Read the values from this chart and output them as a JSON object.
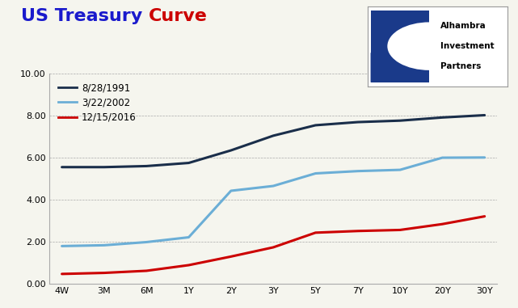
{
  "title_part1": "US Treasury ",
  "title_part2": "Curve",
  "title_color1": "#1a1acc",
  "title_color2": "#cc0000",
  "title_fontsize": 16,
  "x_labels": [
    "4W",
    "3M",
    "6M",
    "1Y",
    "2Y",
    "3Y",
    "5Y",
    "7Y",
    "10Y",
    "20Y",
    "30Y"
  ],
  "x_positions": [
    0,
    1,
    2,
    3,
    4,
    5,
    6,
    7,
    8,
    9,
    10
  ],
  "series": [
    {
      "label": "8/28/1991",
      "color": "#1a2e4a",
      "linewidth": 2.2,
      "values": [
        5.55,
        5.55,
        5.6,
        5.75,
        6.35,
        7.05,
        7.55,
        7.7,
        7.77,
        7.92,
        8.03
      ]
    },
    {
      "label": "3/22/2002",
      "color": "#6baed6",
      "linewidth": 2.2,
      "values": [
        1.78,
        1.82,
        1.97,
        2.2,
        4.42,
        4.65,
        5.25,
        5.36,
        5.42,
        6.0,
        6.01
      ]
    },
    {
      "label": "12/15/2016",
      "color": "#cc0000",
      "linewidth": 2.2,
      "values": [
        0.45,
        0.5,
        0.6,
        0.87,
        1.28,
        1.72,
        2.42,
        2.5,
        2.55,
        2.83,
        3.2
      ]
    }
  ],
  "ylim": [
    0.0,
    10.0
  ],
  "yticks": [
    0.0,
    2.0,
    4.0,
    6.0,
    8.0,
    10.0
  ],
  "ytick_labels": [
    "0.00",
    "2.00",
    "4.00",
    "6.00",
    "8.00",
    "10.00"
  ],
  "grid_color": "#aaaaaa",
  "grid_linestyle": "--",
  "grid_linewidth": 0.5,
  "bg_color": "#f5f5ee",
  "logo_dark_color": "#1a3a8a",
  "logo_text_line1": "Alhambra",
  "logo_text_line2": "Investment",
  "logo_text_line3": "Partners",
  "legend_fontsize": 8.5,
  "tick_fontsize": 8.0
}
